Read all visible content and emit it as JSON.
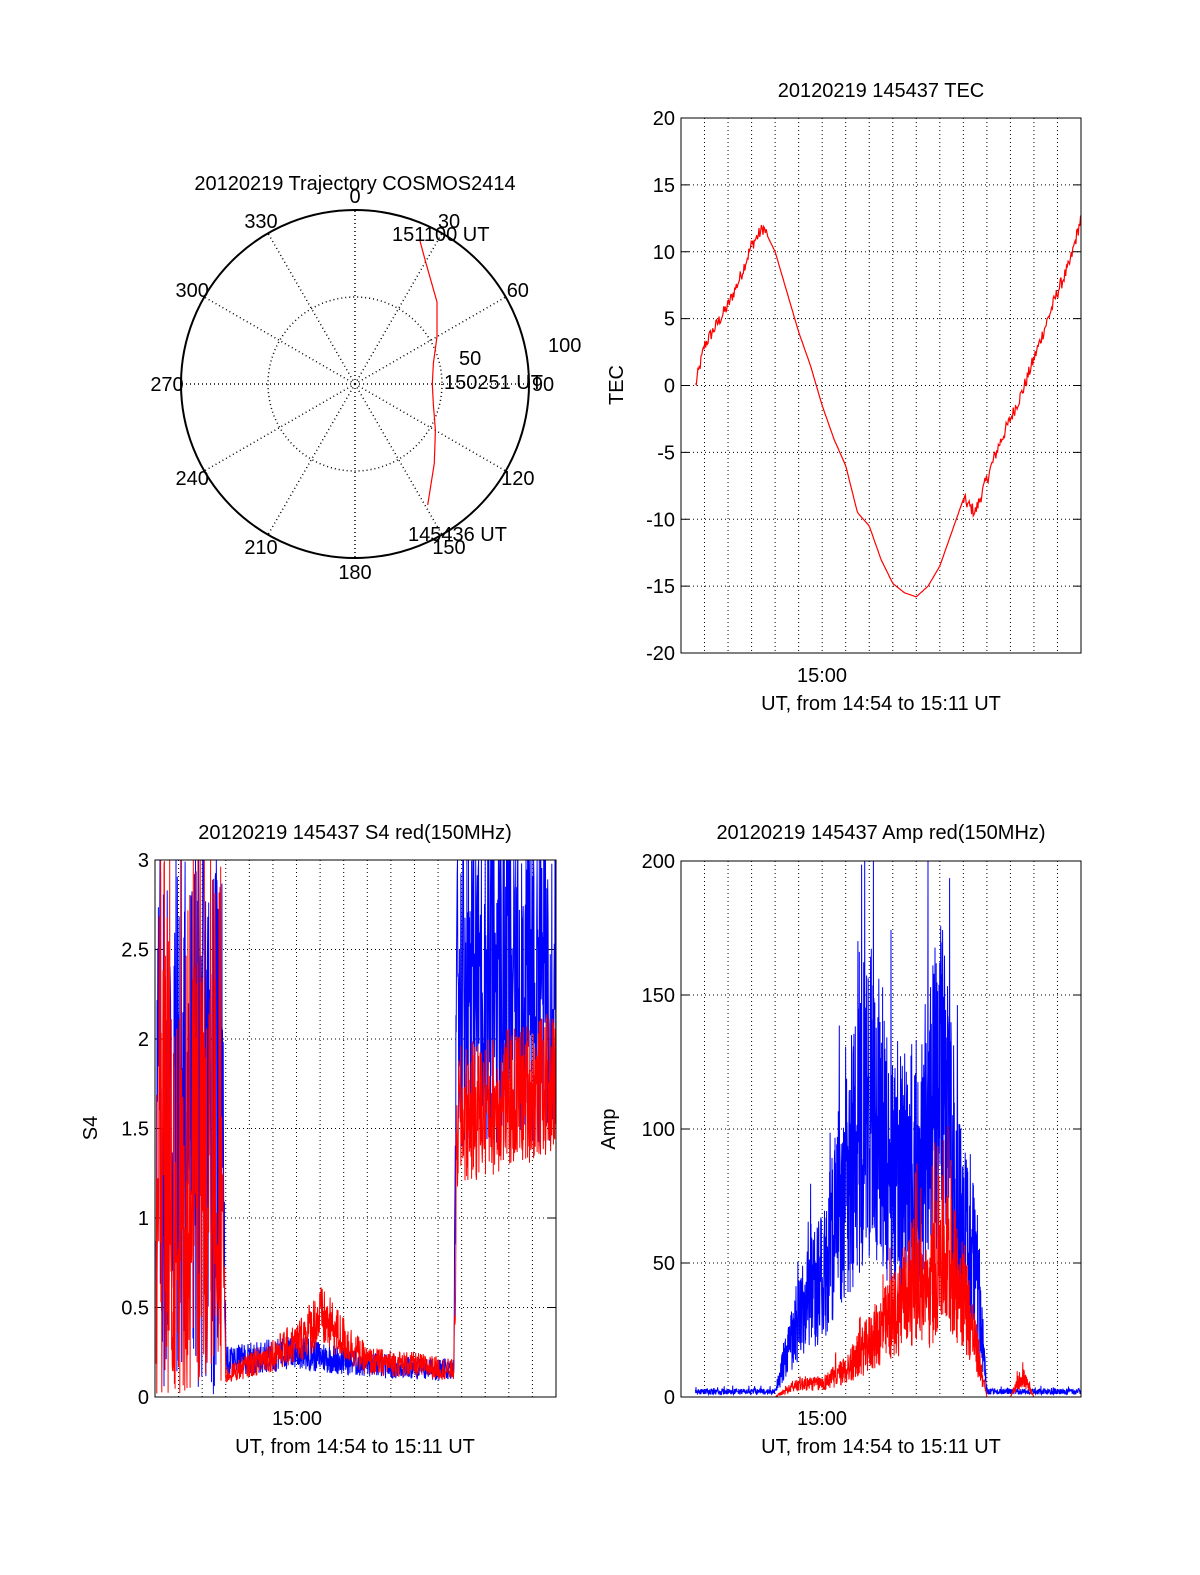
{
  "chart_data": [
    {
      "type": "polar",
      "title": "20120219 Trajectory COSMOS2414",
      "angle_labels": [
        "0",
        "30",
        "60",
        "90",
        "120",
        "150",
        "180",
        "210",
        "240",
        "270",
        "300",
        "330"
      ],
      "radius_labels": [
        "50",
        "100"
      ],
      "trajectory": {
        "color": "#ff0000",
        "start_label": "145436 UT",
        "mid_label": "150251 UT",
        "end_label": "151100 UT",
        "points": [
          {
            "az": 149,
            "zenith": 73
          },
          {
            "az": 135,
            "zenith": 58
          },
          {
            "az": 120,
            "zenith": 48
          },
          {
            "az": 105,
            "zenith": 42
          },
          {
            "az": 90,
            "zenith": 40
          },
          {
            "az": 75,
            "zenith": 42
          },
          {
            "az": 60,
            "zenith": 49
          },
          {
            "az": 45,
            "zenith": 60
          },
          {
            "az": 30,
            "zenith": 73
          },
          {
            "az": 24,
            "zenith": 82
          }
        ]
      }
    },
    {
      "type": "line",
      "title": "20120219 145437 TEC",
      "xlabel": "UT, from 14:54 to 15:11 UT",
      "ylabel": "TEC",
      "xlim": [
        "14:54",
        "15:11"
      ],
      "ylim": [
        -20,
        20
      ],
      "yticks": [
        "-20",
        "-15",
        "-10",
        "-5",
        "0",
        "5",
        "10",
        "15",
        "20"
      ],
      "xtick_label": "15:00",
      "grid": true,
      "series": [
        {
          "color": "#ff0000",
          "x": [
            "14:54:37",
            "14:55:00",
            "14:55:30",
            "14:56:00",
            "14:56:30",
            "14:57:00",
            "14:57:30",
            "14:58:00",
            "14:58:30",
            "14:59:00",
            "14:59:30",
            "15:00:00",
            "15:00:30",
            "15:01:00",
            "15:01:30",
            "15:02:00",
            "15:02:30",
            "15:03:00",
            "15:03:30",
            "15:04:00",
            "15:04:30",
            "15:05:00",
            "15:05:30",
            "15:06:00",
            "15:06:30",
            "15:07:00",
            "15:07:30",
            "15:08:00",
            "15:08:30",
            "15:09:00",
            "15:09:30",
            "15:10:00",
            "15:10:30",
            "15:11:00"
          ],
          "values": [
            0,
            3,
            4.5,
            6,
            8,
            10.5,
            11.8,
            10,
            7,
            4,
            1.5,
            -1.5,
            -4,
            -6,
            -9.5,
            -10.5,
            -13,
            -14.8,
            -15.5,
            -15.8,
            -15,
            -13.5,
            -11,
            -8.5,
            -9.5,
            -7,
            -4.5,
            -2.5,
            -0.5,
            2,
            4.5,
            7,
            9,
            12.5
          ]
        }
      ]
    },
    {
      "type": "line",
      "title": "20120219 145437 S4 red(150MHz)",
      "xlabel": "UT, from 14:54 to 15:11 UT",
      "ylabel": "S4",
      "xlim": [
        "14:54",
        "15:11"
      ],
      "ylim": [
        0,
        3
      ],
      "yticks": [
        "0",
        "0.5",
        "1",
        "1.5",
        "2",
        "2.5",
        "3"
      ],
      "xtick_label": "15:00",
      "grid": true,
      "series": [
        {
          "color": "#0000ff",
          "x": [
            "14:54:00",
            "14:56:50",
            "14:57:00",
            "15:00:00",
            "15:03:00",
            "15:05:00",
            "15:06:40",
            "15:06:50",
            "15:11:00"
          ],
          "values": [
            2.2,
            2.2,
            0.2,
            0.25,
            0.18,
            0.16,
            0.15,
            2.6,
            2.6
          ]
        },
        {
          "color": "#ff0000",
          "x": [
            "14:54:00",
            "14:56:50",
            "14:57:00",
            "15:00:00",
            "15:01:00",
            "15:03:00",
            "15:05:00",
            "15:06:40",
            "15:06:50",
            "15:11:00"
          ],
          "values": [
            1.3,
            1.3,
            0.12,
            0.3,
            0.45,
            0.2,
            0.18,
            0.15,
            1.4,
            1.6
          ]
        }
      ]
    },
    {
      "type": "line",
      "title": "20120219 145437 Amp red(150MHz)",
      "xlabel": "UT, from 14:54 to 15:11 UT",
      "ylabel": "Amp",
      "xlim": [
        "14:54",
        "15:11"
      ],
      "ylim": [
        0,
        200
      ],
      "yticks": [
        "0",
        "50",
        "100",
        "150",
        "200"
      ],
      "xtick_label": "15:00",
      "grid": true,
      "series": [
        {
          "color": "#0000ff",
          "x": [
            "14:54:37",
            "14:58:00",
            "14:59:00",
            "15:00:00",
            "15:01:00",
            "15:01:30",
            "15:02:00",
            "15:03:00",
            "15:04:00",
            "15:04:30",
            "15:05:00",
            "15:06:00",
            "15:06:30",
            "15:07:00",
            "15:08:00",
            "15:09:00",
            "15:11:00"
          ],
          "values": [
            2,
            2,
            30,
            45,
            80,
            95,
            115,
            80,
            90,
            100,
            120,
            60,
            55,
            2,
            2,
            2,
            2
          ]
        },
        {
          "color": "#ff0000",
          "x": [
            "14:54:37",
            "14:58:00",
            "14:59:00",
            "15:00:00",
            "15:01:00",
            "15:02:00",
            "15:03:00",
            "15:04:00",
            "15:04:30",
            "15:05:00",
            "15:06:00",
            "15:06:30",
            "15:07:00",
            "15:08:00",
            "15:08:30",
            "15:09:00",
            "15:11:00"
          ],
          "values": [
            0,
            0,
            5,
            5,
            10,
            20,
            30,
            45,
            35,
            55,
            40,
            20,
            0,
            0,
            8,
            0,
            0
          ]
        }
      ]
    }
  ]
}
